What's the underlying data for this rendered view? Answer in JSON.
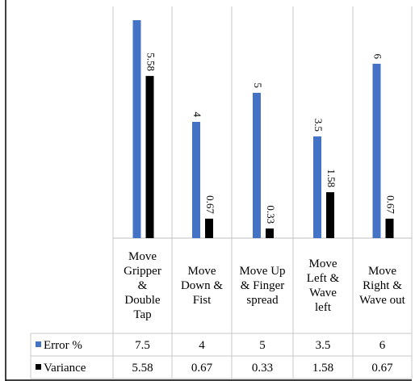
{
  "chart_data": {
    "type": "bar",
    "categories": [
      "Move Gripper & Double Tap",
      "Move Down & Fist",
      "Move Up & Finger spread",
      "Move Left & Wave left",
      "Move Right & Wave out"
    ],
    "category_lines": [
      [
        "Move",
        "Gripper",
        "&",
        "Double",
        "Tap"
      ],
      [
        "Move",
        "Down &",
        "Fist"
      ],
      [
        "Move Up",
        "& Finger",
        "spread"
      ],
      [
        "Move",
        "Left &",
        "Wave",
        "left"
      ],
      [
        "Move",
        "Right &",
        "Wave out"
      ]
    ],
    "series": [
      {
        "name": "Error %",
        "color": "#4472c4",
        "values": [
          7.5,
          4,
          5,
          3.5,
          6
        ],
        "labels": [
          "",
          "4",
          "5",
          "3.5",
          "6"
        ],
        "table_values": [
          "7.5",
          "4",
          "5",
          "3.5",
          "6"
        ]
      },
      {
        "name": "Variance",
        "color": "#000000",
        "values": [
          5.58,
          0.67,
          0.33,
          1.58,
          0.67
        ],
        "labels": [
          "5.58",
          "0.67",
          "0.33",
          "1.58",
          "0.67"
        ],
        "table_values": [
          "5.58",
          "0.67",
          "0.33",
          "1.58",
          "0.67"
        ]
      }
    ],
    "ylim": [
      0,
      8
    ],
    "grid": false,
    "legend": "data table",
    "data_label_orientation": "vertical"
  }
}
